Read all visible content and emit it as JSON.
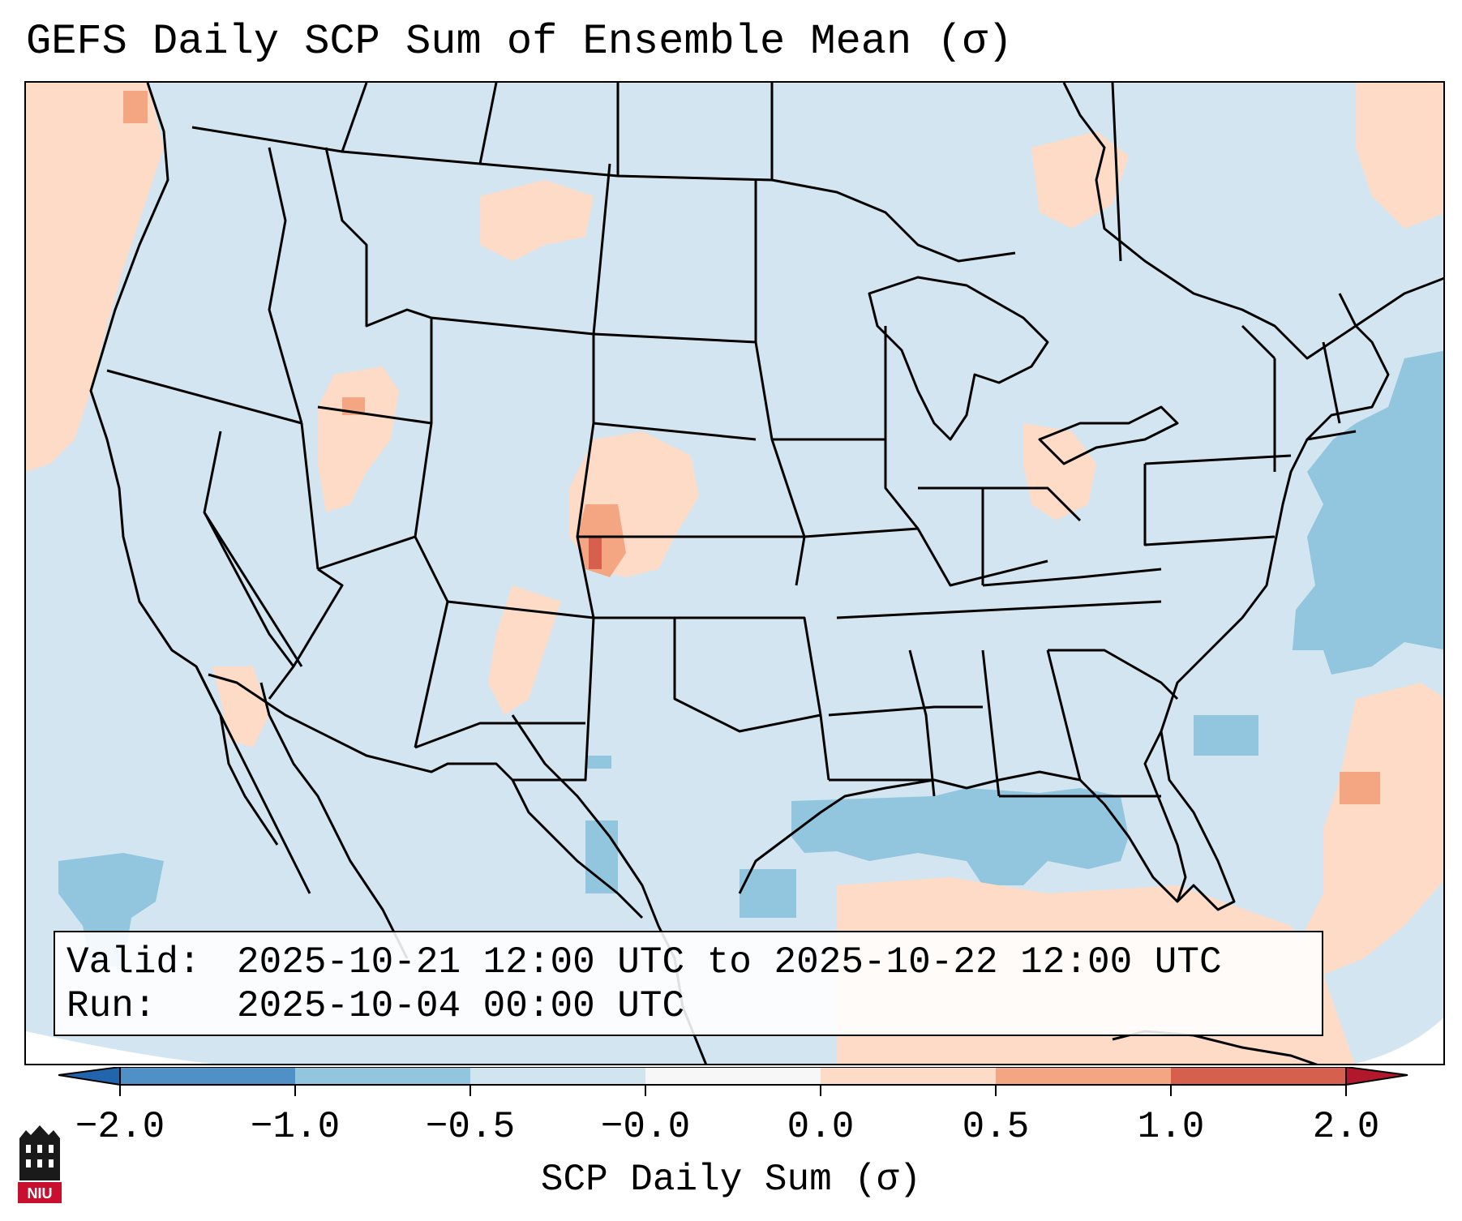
{
  "header": {
    "title": "GEFS Daily SCP Sum of Ensemble Mean (σ)"
  },
  "infobox": {
    "valid_label": "Valid:",
    "valid_value": "2025-10-21 12:00 UTC to 2025-10-22 12:00 UTC",
    "run_label": "Run:",
    "run_value": "2025-10-04 00:00 UTC"
  },
  "colorbar": {
    "label": "SCP Daily Sum (σ)",
    "ticks": [
      "−2.0",
      "−1.0",
      "−0.5",
      "−0.0",
      "0.0",
      "0.5",
      "1.0",
      "2.0"
    ],
    "bins": [
      {
        "range": "-2.0 to -1.0",
        "color": "#4f90c6"
      },
      {
        "range": "-1.0 to -0.5",
        "color": "#92c5de"
      },
      {
        "range": "-0.5 to -0.0",
        "color": "#d1e5f0"
      },
      {
        "range": "-0.0 to 0.0",
        "color": "#f7f7f7"
      },
      {
        "range": "0.0 to 0.5",
        "color": "#fddbc7"
      },
      {
        "range": "0.5 to 1.0",
        "color": "#f4a582"
      },
      {
        "range": "1.0 to 2.0",
        "color": "#d6604d"
      }
    ],
    "extend_low_color": "#2166ac",
    "extend_high_color": "#b2182b"
  },
  "map": {
    "region": "Contiguous United States",
    "background_color": "#d3e5f0",
    "anomaly_regions": [
      {
        "area": "Pacific Northwest coast",
        "level": "0.0 to 0.5"
      },
      {
        "area": "Eastern Colorado / Kansas",
        "level": "0.5 to 1.0"
      },
      {
        "area": "Eastern Colorado core",
        "level": "1.0 to 2.0"
      },
      {
        "area": "Utah",
        "level": "0.0 to 0.5"
      },
      {
        "area": "New Mexico",
        "level": "0.0 to 0.5"
      },
      {
        "area": "Ohio Valley",
        "level": "0.0 to 0.5"
      },
      {
        "area": "Gulf of Mexico",
        "level": "-1.0 to -0.5"
      },
      {
        "area": "Western Atlantic",
        "level": "-1.0 to -0.5"
      },
      {
        "area": "Southwestern Atlantic",
        "level": "0.0 to 0.5"
      }
    ]
  },
  "logo": {
    "text": "NIU"
  }
}
